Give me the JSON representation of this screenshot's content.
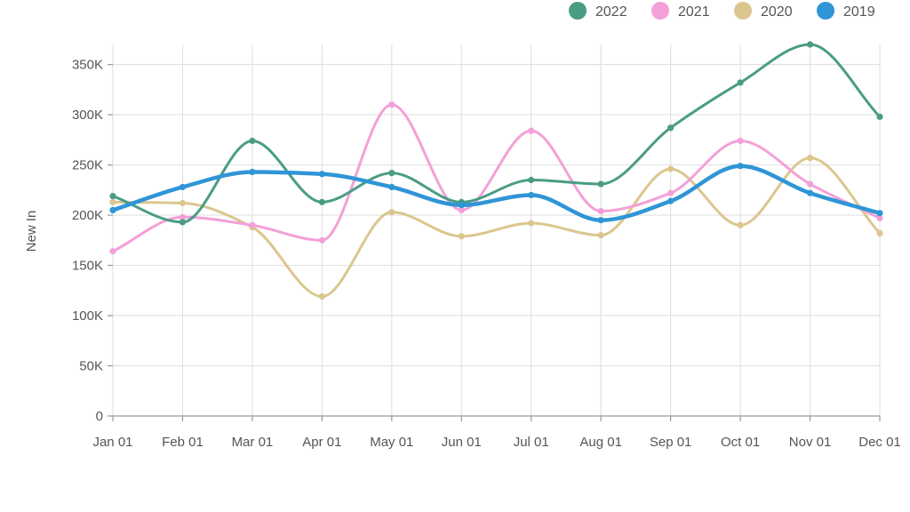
{
  "chart_data": {
    "type": "line",
    "ylabel": "New In",
    "categories": [
      "Jan 01",
      "Feb 01",
      "Mar 01",
      "Apr 01",
      "May 01",
      "Jun 01",
      "Jul 01",
      "Aug 01",
      "Sep 01",
      "Oct 01",
      "Nov 01",
      "Dec 01"
    ],
    "yticks": [
      {
        "value": 0,
        "label": "0"
      },
      {
        "value": 50000,
        "label": "50K"
      },
      {
        "value": 100000,
        "label": "100K"
      },
      {
        "value": 150000,
        "label": "150K"
      },
      {
        "value": 200000,
        "label": "200K"
      },
      {
        "value": 250000,
        "label": "250K"
      },
      {
        "value": 300000,
        "label": "300K"
      },
      {
        "value": 350000,
        "label": "350K"
      }
    ],
    "ylim": [
      0,
      370000
    ],
    "legend_position": "top-right",
    "grid": true,
    "series": [
      {
        "name": "2022",
        "color": "#4a9c85",
        "values": [
          219000,
          193000,
          274000,
          213000,
          242000,
          213000,
          235000,
          231000,
          287000,
          332000,
          370000,
          298000
        ]
      },
      {
        "name": "2021",
        "color": "#f4a0d8",
        "values": [
          164000,
          198000,
          190000,
          175000,
          310000,
          205000,
          284000,
          204000,
          222000,
          274000,
          231000,
          197000
        ]
      },
      {
        "name": "2020",
        "color": "#dcc68f",
        "values": [
          213000,
          212000,
          188000,
          119000,
          203000,
          179000,
          192000,
          180000,
          246000,
          190000,
          257000,
          182000
        ]
      },
      {
        "name": "2019",
        "color": "#2f95d6",
        "values": [
          205000,
          228000,
          243000,
          241000,
          228000,
          210000,
          220000,
          195000,
          214000,
          249000,
          222000,
          202000
        ]
      }
    ]
  }
}
